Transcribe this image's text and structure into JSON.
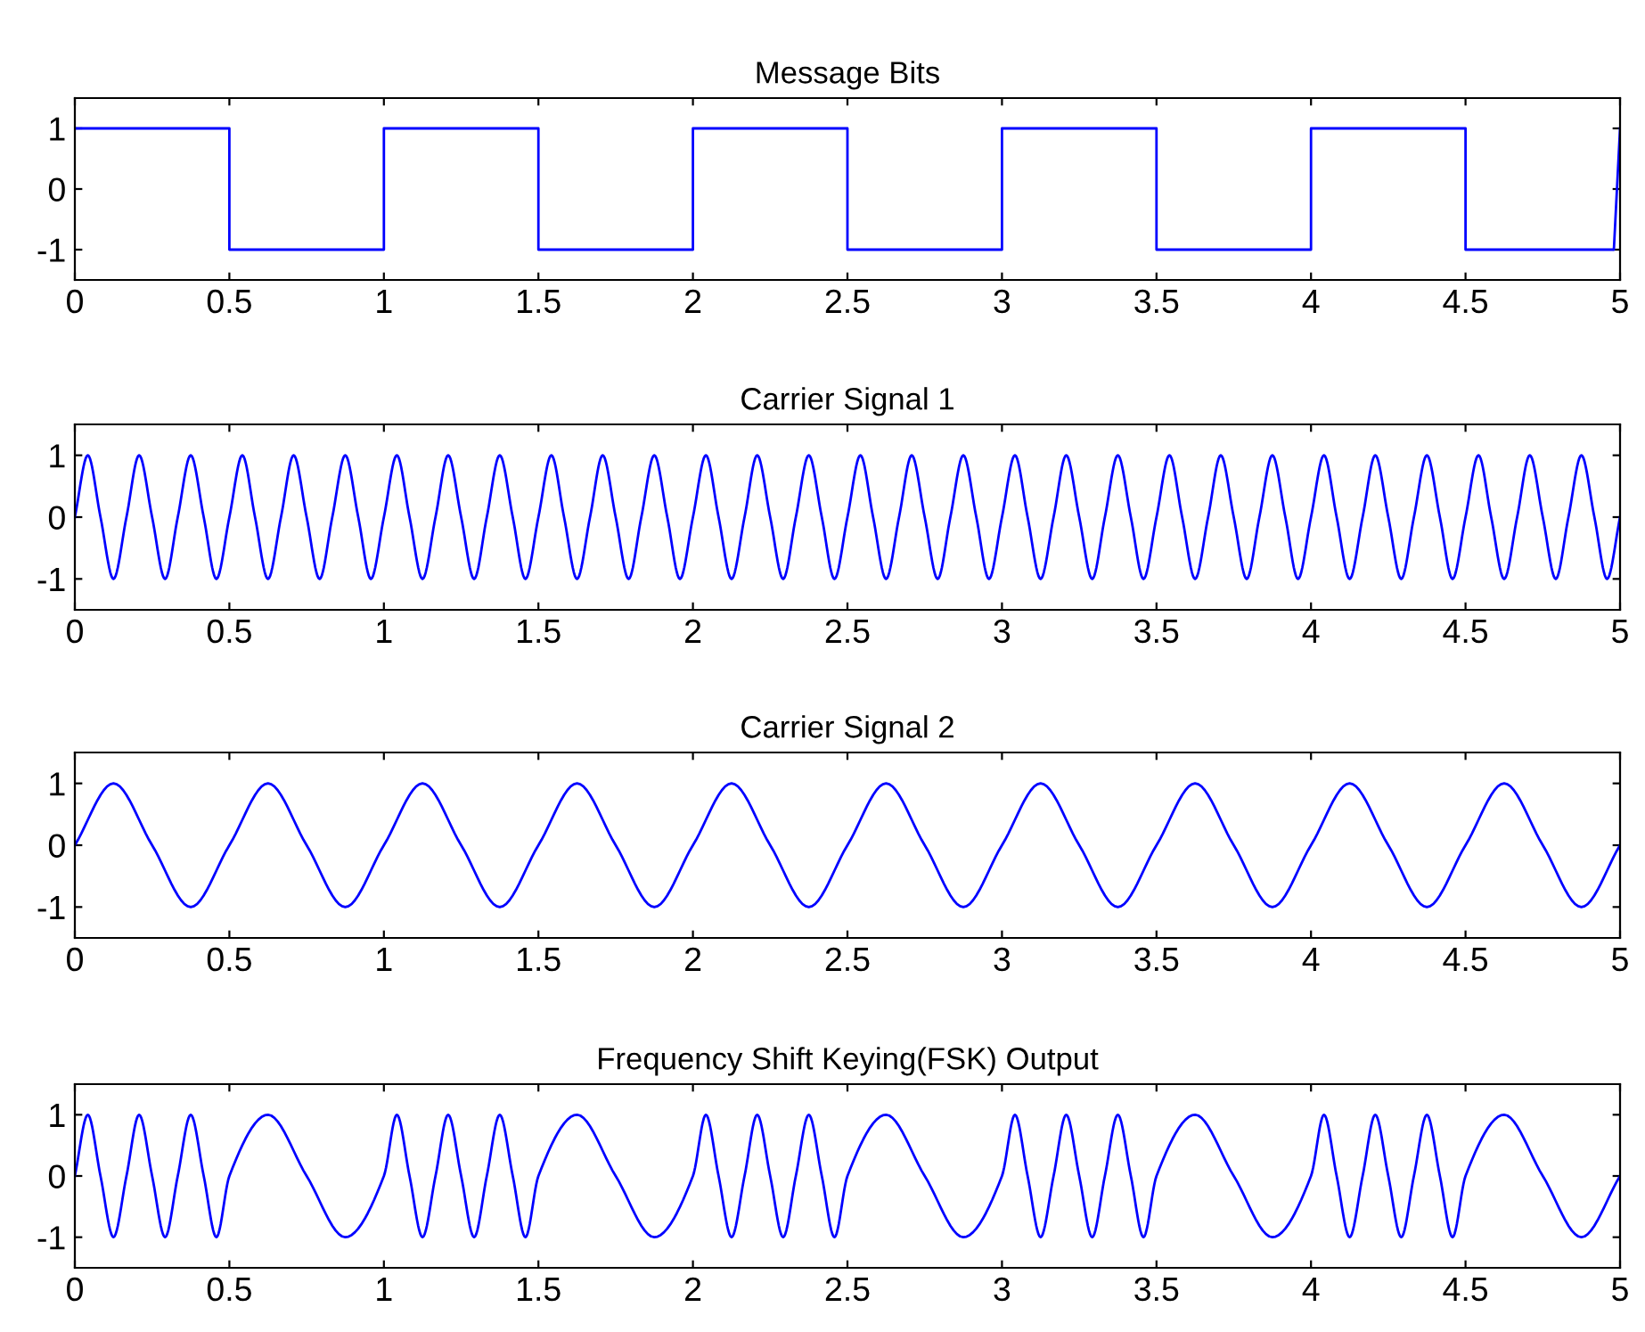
{
  "chart_data": [
    {
      "type": "line",
      "title": "Message Bits",
      "x": [
        0,
        0.5,
        0.5,
        1,
        1,
        1.5,
        1.5,
        2,
        2,
        2.5,
        2.5,
        3,
        3,
        3.5,
        3.5,
        4,
        4,
        4.5,
        4.5,
        4.98,
        5
      ],
      "series": [
        {
          "color": "#0000ff",
          "values": [
            1,
            1,
            -1,
            -1,
            1,
            1,
            -1,
            -1,
            1,
            1,
            -1,
            -1,
            1,
            1,
            -1,
            -1,
            1,
            1,
            -1,
            -1,
            1
          ]
        }
      ],
      "xlim": [
        0,
        5
      ],
      "ylim": [
        -1.5,
        1.5
      ],
      "xticks": [
        0,
        0.5,
        1,
        1.5,
        2,
        2.5,
        3,
        3.5,
        4,
        4.5,
        5
      ],
      "yticks": [
        -1,
        0,
        1
      ]
    },
    {
      "type": "line",
      "title": "Carrier Signal 1",
      "x": [
        0,
        0.042,
        0.083,
        0.125,
        0.167,
        0.208,
        0.25,
        0.292,
        0.333,
        0.375,
        0.417,
        0.458,
        0.5,
        0.542,
        0.583,
        0.625,
        0.667,
        0.708,
        0.75,
        0.792,
        0.833,
        0.875,
        0.917,
        0.958,
        1,
        1.042,
        1.083,
        1.125,
        1.167,
        1.208,
        1.25,
        1.292,
        1.333,
        1.375,
        1.417,
        1.458,
        1.5,
        1.542,
        1.583,
        1.625,
        1.667,
        1.708,
        1.75,
        1.792,
        1.833,
        1.875,
        1.917,
        1.958,
        2,
        2.042,
        2.083,
        2.125,
        2.167,
        2.208,
        2.25,
        2.292,
        2.333,
        2.375,
        2.417,
        2.458,
        2.5,
        2.542,
        2.583,
        2.625,
        2.667,
        2.708,
        2.75,
        2.792,
        2.833,
        2.875,
        2.917,
        2.958,
        3,
        3.042,
        3.083,
        3.125,
        3.167,
        3.208,
        3.25,
        3.292,
        3.333,
        3.375,
        3.417,
        3.458,
        3.5,
        3.542,
        3.583,
        3.625,
        3.667,
        3.708,
        3.75,
        3.792,
        3.833,
        3.875,
        3.917,
        3.958,
        4,
        4.042,
        4.083,
        4.125,
        4.167,
        4.208,
        4.25,
        4.292,
        4.333,
        4.375,
        4.417,
        4.458,
        4.5,
        4.542,
        4.583,
        4.625,
        4.667,
        4.708,
        4.75,
        4.792,
        4.833,
        4.875,
        4.917,
        4.958,
        5
      ],
      "series": [
        {
          "color": "#0000ff",
          "values": [
            0,
            1,
            0,
            -1,
            0,
            1,
            0,
            -1,
            0,
            1,
            0,
            -1,
            0,
            1,
            0,
            -1,
            0,
            1,
            0,
            -1,
            0,
            1,
            0,
            -1,
            0,
            1,
            0,
            -1,
            0,
            1,
            0,
            -1,
            0,
            1,
            0,
            -1,
            0,
            1,
            0,
            -1,
            0,
            1,
            0,
            -1,
            0,
            1,
            0,
            -1,
            0,
            1,
            0,
            -1,
            0,
            1,
            0,
            -1,
            0,
            1,
            0,
            -1,
            0,
            1,
            0,
            -1,
            0,
            1,
            0,
            -1,
            0,
            1,
            0,
            -1,
            0,
            1,
            0,
            -1,
            0,
            1,
            0,
            -1,
            0,
            1,
            0,
            -1,
            0,
            1,
            0,
            -1,
            0,
            1,
            0,
            -1,
            0,
            1,
            0,
            -1,
            0,
            1,
            0,
            -1,
            0,
            1,
            0,
            -1,
            0,
            1,
            0,
            -1,
            0,
            1,
            0,
            -1,
            0,
            1,
            0,
            -1,
            0,
            1,
            0,
            -1,
            0
          ]
        }
      ],
      "xlim": [
        0,
        5
      ],
      "ylim": [
        -1.5,
        1.5
      ],
      "xticks": [
        0,
        0.5,
        1,
        1.5,
        2,
        2.5,
        3,
        3.5,
        4,
        4.5,
        5
      ],
      "yticks": [
        -1,
        0,
        1
      ]
    },
    {
      "type": "line",
      "title": "Carrier Signal 2",
      "x": [
        0,
        0.125,
        0.25,
        0.375,
        0.5,
        0.625,
        0.75,
        0.875,
        1,
        1.125,
        1.25,
        1.375,
        1.5,
        1.625,
        1.75,
        1.875,
        2,
        2.125,
        2.25,
        2.375,
        2.5,
        2.625,
        2.75,
        2.875,
        3,
        3.125,
        3.25,
        3.375,
        3.5,
        3.625,
        3.75,
        3.875,
        4,
        4.125,
        4.25,
        4.375,
        4.5,
        4.625,
        4.75,
        4.875,
        5
      ],
      "series": [
        {
          "color": "#0000ff",
          "values": [
            0,
            1,
            0,
            -1,
            0,
            1,
            0,
            -1,
            0,
            1,
            0,
            -1,
            0,
            1,
            0,
            -1,
            0,
            1,
            0,
            -1,
            0,
            1,
            0,
            -1,
            0,
            1,
            0,
            -1,
            0,
            1,
            0,
            -1,
            0,
            1,
            0,
            -1,
            0,
            1,
            0,
            -1,
            0
          ]
        }
      ],
      "xlim": [
        0,
        5
      ],
      "ylim": [
        -1.5,
        1.5
      ],
      "xticks": [
        0,
        0.5,
        1,
        1.5,
        2,
        2.5,
        3,
        3.5,
        4,
        4.5,
        5
      ],
      "yticks": [
        -1,
        0,
        1
      ]
    },
    {
      "type": "line",
      "title": "Frequency Shift Keying(FSK) Output",
      "x": [
        0,
        0.042,
        0.083,
        0.125,
        0.167,
        0.208,
        0.25,
        0.292,
        0.333,
        0.375,
        0.417,
        0.458,
        0.5,
        0.625,
        0.75,
        0.875,
        1,
        1.042,
        1.083,
        1.125,
        1.167,
        1.208,
        1.25,
        1.292,
        1.333,
        1.375,
        1.417,
        1.458,
        1.5,
        1.625,
        1.75,
        1.875,
        2,
        2.042,
        2.083,
        2.125,
        2.167,
        2.208,
        2.25,
        2.292,
        2.333,
        2.375,
        2.417,
        2.458,
        2.5,
        2.625,
        2.75,
        2.875,
        3,
        3.042,
        3.083,
        3.125,
        3.167,
        3.208,
        3.25,
        3.292,
        3.333,
        3.375,
        3.417,
        3.458,
        3.5,
        3.625,
        3.75,
        3.875,
        4,
        4.042,
        4.083,
        4.125,
        4.167,
        4.208,
        4.25,
        4.292,
        4.333,
        4.375,
        4.417,
        4.458,
        4.5,
        4.625,
        4.75,
        4.875,
        5
      ],
      "series": [
        {
          "color": "#0000ff",
          "values": [
            0,
            1,
            0,
            -1,
            0,
            1,
            0,
            -1,
            0,
            1,
            0,
            -1,
            0,
            1,
            0,
            -1,
            0,
            1,
            0,
            -1,
            0,
            1,
            0,
            -1,
            0,
            1,
            0,
            -1,
            0,
            1,
            0,
            -1,
            0,
            1,
            0,
            -1,
            0,
            1,
            0,
            -1,
            0,
            1,
            0,
            -1,
            0,
            1,
            0,
            -1,
            0,
            1,
            0,
            -1,
            0,
            1,
            0,
            -1,
            0,
            1,
            0,
            -1,
            0,
            1,
            0,
            -1,
            0,
            1,
            0,
            -1,
            0,
            1,
            0,
            -1,
            0,
            1,
            0,
            -1,
            0,
            1,
            0,
            -1,
            0
          ]
        }
      ],
      "xlim": [
        0,
        5
      ],
      "ylim": [
        -1.5,
        1.5
      ],
      "xticks": [
        0,
        0.5,
        1,
        1.5,
        2,
        2.5,
        3,
        3.5,
        4,
        4.5,
        5
      ],
      "yticks": [
        -1,
        0,
        1
      ]
    }
  ]
}
